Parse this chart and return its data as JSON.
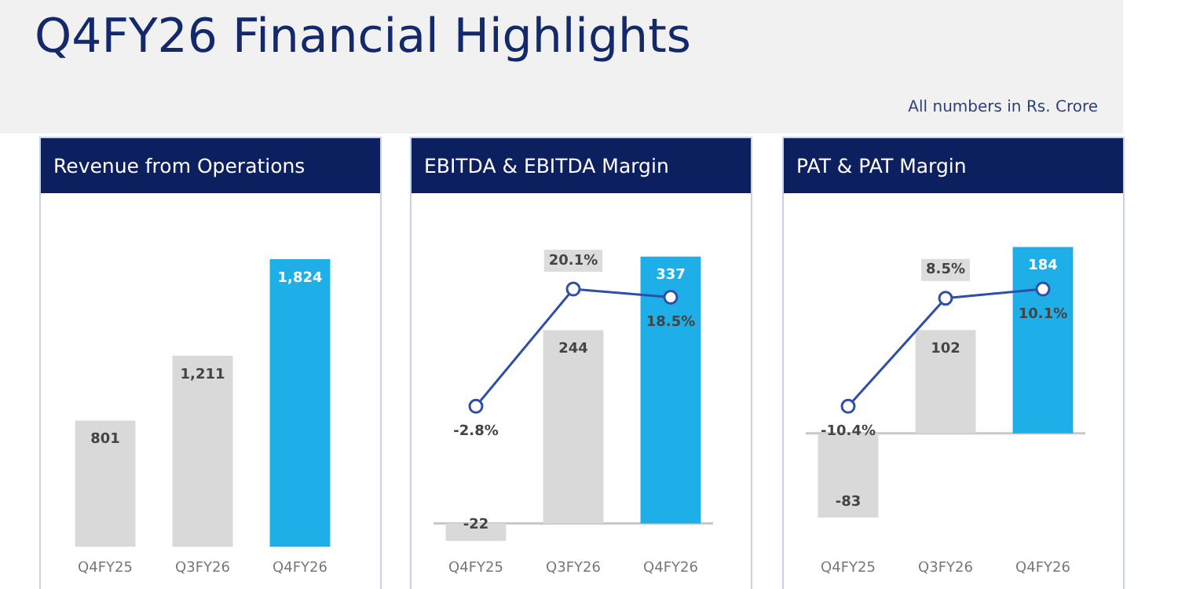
{
  "chart_data": [
    {
      "type": "other",
      "title": "Q4FY26 Financial Highlights",
      "annotations": [
        "All numbers in Rs. Crore"
      ]
    },
    {
      "type": "bar",
      "title": "Revenue from Operations",
      "categories": [
        "Q4FY25",
        "Q3FY26",
        "Q4FY26"
      ],
      "tick_labels": "x",
      "grid": false,
      "legend": false,
      "series": [
        {
          "type": "bar",
          "colors": [
            "#d9d9d9",
            "#d9d9d9",
            "#1eaee8"
          ],
          "values": [
            801,
            1211,
            1824
          ],
          "value_labels": [
            "801",
            "1,211",
            "1,824"
          ]
        }
      ]
    },
    {
      "type": "bar",
      "title": "EBITDA & EBITDA Margin",
      "categories": [
        "Q4FY25",
        "Q3FY26",
        "Q4FY26"
      ],
      "tick_labels": "x",
      "grid": false,
      "legend": false,
      "marker": "circle",
      "ref_lines": [
        {
          "axis": "y",
          "value": 0,
          "color": "#c8c8c8"
        }
      ],
      "series": [
        {
          "type": "bar",
          "colors": [
            "#d9d9d9",
            "#d9d9d9",
            "#1eaee8"
          ],
          "values": [
            -22,
            244,
            337
          ],
          "value_labels": [
            "-22",
            "244",
            "337"
          ]
        },
        {
          "type": "line",
          "axis": "y2",
          "color": "#2e4fa8",
          "values": [
            -2.8,
            20.1,
            18.5
          ],
          "value_labels": [
            "-2.8%",
            "20.1%",
            "18.5%"
          ]
        }
      ]
    },
    {
      "type": "bar",
      "title": "PAT & PAT Margin",
      "categories": [
        "Q4FY25",
        "Q3FY26",
        "Q4FY26"
      ],
      "tick_labels": "x",
      "grid": false,
      "legend": false,
      "marker": "circle",
      "ref_lines": [
        {
          "axis": "y",
          "value": 0,
          "color": "#c8c8c8"
        }
      ],
      "series": [
        {
          "type": "bar",
          "colors": [
            "#d9d9d9",
            "#d9d9d9",
            "#1eaee8"
          ],
          "values": [
            -83,
            102,
            184
          ],
          "value_labels": [
            "-83",
            "102",
            "184"
          ]
        },
        {
          "type": "line",
          "axis": "y2",
          "color": "#2e4fa8",
          "values": [
            -10.4,
            8.5,
            10.1
          ],
          "value_labels": [
            "-10.4%",
            "8.5%",
            "10.1%"
          ]
        }
      ]
    }
  ]
}
